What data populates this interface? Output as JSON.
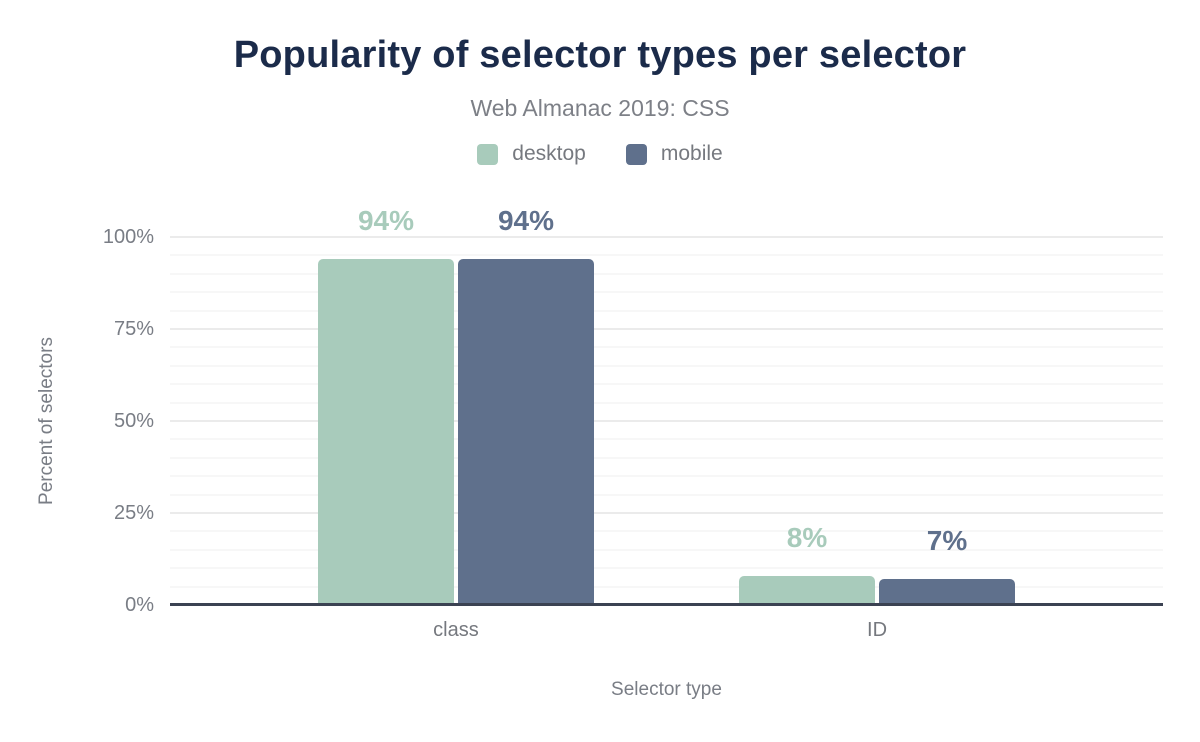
{
  "chart_data": {
    "type": "bar",
    "title": "Popularity of selector types per selector",
    "subtitle": "Web Almanac 2019: CSS",
    "categories": [
      "class",
      "ID"
    ],
    "series": [
      {
        "name": "desktop",
        "color": "#a8cbbb",
        "values": [
          94,
          8
        ],
        "labels": [
          "94%",
          "8%"
        ]
      },
      {
        "name": "mobile",
        "color": "#5f708c",
        "values": [
          94,
          7
        ],
        "labels": [
          "94%",
          "7%"
        ]
      }
    ],
    "xlabel": "Selector type",
    "ylabel": "Percent of selectors",
    "ylim": [
      0,
      100
    ],
    "yticks": [
      {
        "value": 0,
        "label": "0%"
      },
      {
        "value": 25,
        "label": "25%"
      },
      {
        "value": 50,
        "label": "50%"
      },
      {
        "value": 75,
        "label": "75%"
      },
      {
        "value": 100,
        "label": "100%"
      }
    ],
    "grid": {
      "minor_step": 5,
      "major_step": 25,
      "on": true
    },
    "legend_position": "top",
    "colors": {
      "title": "#1b2b4a",
      "muted_text": "#797d85",
      "axis_line": "#3b4252",
      "gridline_major": "#ebebeb",
      "gridline_minor": "#f7f7f7",
      "background": "#ffffff"
    }
  }
}
